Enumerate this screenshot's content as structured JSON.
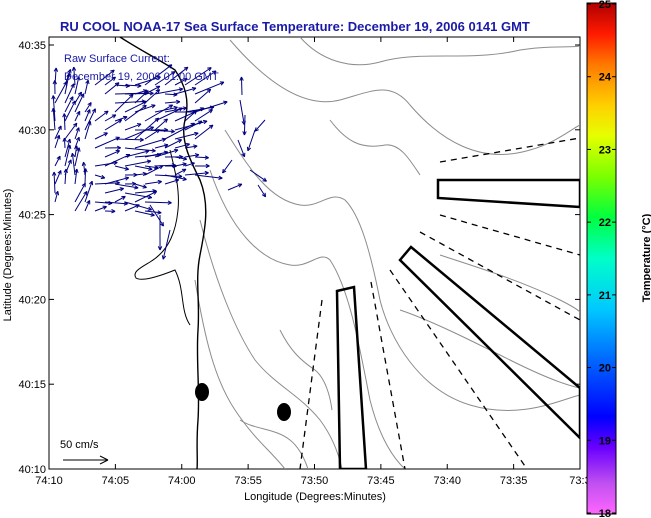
{
  "header": {
    "title": "RU COOL  NOAA-17  Sea Surface Temperature:  December 19, 2006 0141 GMT"
  },
  "annotation": {
    "line1": "Raw Surface Current:",
    "line2": "December 19, 2006 01:00 GMT"
  },
  "scale_label": "50 cm/s",
  "axes": {
    "xlabel": "Longitude (Degrees:Minutes)",
    "ylabel": "Latitude (Degrees:Minutes)",
    "x_ticks": [
      "74:10",
      "74:05",
      "74:00",
      "73:55",
      "73:50",
      "73:45",
      "73:40",
      "73:35",
      "73:3"
    ],
    "y_ticks": [
      "40:35",
      "40:30",
      "40:25",
      "40:20",
      "40:15",
      "40:10"
    ]
  },
  "colorbar": {
    "label": "Temperature (°C)",
    "min": 18,
    "max": 25,
    "ticks": [
      "25",
      "24",
      "23",
      "22",
      "21",
      "20",
      "19",
      "18"
    ]
  },
  "colors": {
    "title": "#1a1aa6",
    "currents": "#000080",
    "contours": "#8c8c8c",
    "coast": "#000000"
  }
}
